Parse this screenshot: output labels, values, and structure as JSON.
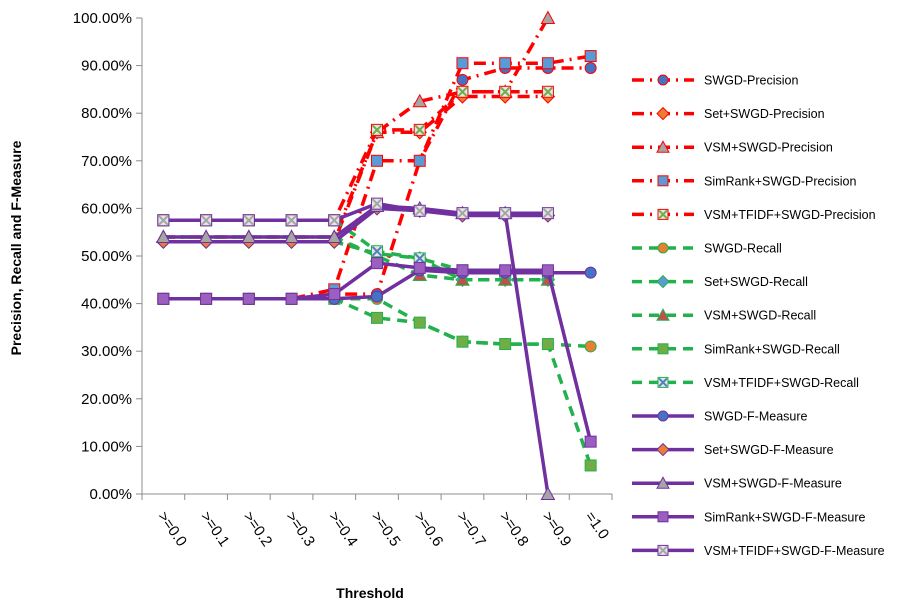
{
  "chart_data": {
    "type": "line",
    "title": "",
    "xlabel": "Threshold",
    "ylabel": "Precision, Recall and F-Measure",
    "categories": [
      ">=0.0",
      ">=0.1",
      ">=0.2",
      ">=0.3",
      ">=0.4",
      ">=0.5",
      ">=0.6",
      ">=0.7",
      ">=0.8",
      ">=0.9",
      "=1.0"
    ],
    "y_ticks": [
      "0.00%",
      "10.00%",
      "20.00%",
      "30.00%",
      "40.00%",
      "50.00%",
      "60.00%",
      "70.00%",
      "80.00%",
      "90.00%",
      "100.00%"
    ],
    "ylim": [
      0,
      100
    ],
    "grid": false,
    "legend_position": "right",
    "series": [
      {
        "name": "SWGD-Precision",
        "color": "#ff0000",
        "marker_color": "#4472c4",
        "marker": "circle",
        "style": "dashdot",
        "values": [
          41,
          41,
          41,
          41,
          42,
          42,
          70,
          87,
          89.5,
          89.5,
          89.5
        ]
      },
      {
        "name": "Set+SWGD-Precision",
        "color": "#ff0000",
        "marker_color": "#ed7d31",
        "marker": "diamond",
        "style": "dashdot",
        "values": [
          53,
          53,
          53,
          53,
          53,
          76,
          76,
          83.5,
          83.5,
          83.5,
          null
        ]
      },
      {
        "name": "VSM+SWGD-Precision",
        "color": "#ff0000",
        "marker_color": "#a5a5a5",
        "marker": "triangle",
        "style": "dashdot",
        "values": [
          54,
          54,
          54,
          54,
          54,
          76,
          82.5,
          84.5,
          84.5,
          100,
          null
        ]
      },
      {
        "name": "SimRank+SWGD-Precision",
        "color": "#ff0000",
        "marker_color": "#5b9bd5",
        "marker": "square",
        "style": "dashdot",
        "values": [
          41,
          41,
          41,
          41,
          43,
          70,
          70,
          90.5,
          90.5,
          90.5,
          92
        ]
      },
      {
        "name": "VSM+TFIDF+SWGD-Precision",
        "color": "#ff0000",
        "marker_color": "#70ad47",
        "marker": "x",
        "style": "dashdot",
        "values": [
          57.5,
          57.5,
          57.5,
          57.5,
          57.5,
          76.5,
          76.5,
          84.5,
          84.5,
          84.5,
          null
        ]
      },
      {
        "name": "SWGD-Recall",
        "color": "#22b14c",
        "marker_color": "#ed7d31",
        "marker": "circle",
        "style": "dashed",
        "values": [
          41,
          41,
          41,
          41,
          41,
          41,
          36,
          32,
          31.5,
          31.5,
          31
        ]
      },
      {
        "name": "Set+SWGD-Recall",
        "color": "#22b14c",
        "marker_color": "#5b9bd5",
        "marker": "diamond",
        "style": "dashed",
        "values": [
          53,
          53,
          53,
          53,
          53,
          50.5,
          49.5,
          45,
          45,
          45,
          null
        ]
      },
      {
        "name": "VSM+SWGD-Recall",
        "color": "#22b14c",
        "marker_color": "#c0504d",
        "marker": "triangle",
        "style": "dashed",
        "values": [
          54,
          54,
          54,
          54,
          54,
          50,
          46,
          45,
          45,
          45,
          null
        ]
      },
      {
        "name": "SimRank+SWGD-Recall",
        "color": "#22b14c",
        "marker_color": "#70ad47",
        "marker": "square",
        "style": "dashed",
        "values": [
          41,
          41,
          41,
          41,
          41,
          37,
          36,
          32,
          31.5,
          31.5,
          6
        ]
      },
      {
        "name": "VSM+TFIDF+SWGD-Recall",
        "color": "#22b14c",
        "marker_color": "#4f81bd",
        "marker": "x",
        "style": "dashed",
        "values": [
          57.5,
          57.5,
          57.5,
          57.5,
          57.5,
          51,
          49.5,
          47,
          46.5,
          46.5,
          null
        ]
      },
      {
        "name": "SWGD-F-Measure",
        "color": "#7030a0",
        "marker_color": "#4472c4",
        "marker": "circle",
        "style": "solid",
        "values": [
          41,
          41,
          41,
          41,
          41,
          41.5,
          47,
          46.5,
          46.5,
          46.5,
          46.5
        ]
      },
      {
        "name": "Set+SWGD-F-Measure",
        "color": "#7030a0",
        "marker_color": "#ed7d31",
        "marker": "diamond",
        "style": "solid",
        "values": [
          53,
          53,
          53,
          53,
          53,
          60,
          59.5,
          58.5,
          58.5,
          58.5,
          null
        ]
      },
      {
        "name": "VSM+SWGD-F-Measure",
        "color": "#7030a0",
        "marker_color": "#a5a5a5",
        "marker": "triangle",
        "style": "solid",
        "values": [
          54,
          54,
          54,
          54,
          54,
          60.5,
          60,
          59,
          59,
          0,
          null
        ]
      },
      {
        "name": "SimRank+SWGD-F-Measure",
        "color": "#7030a0",
        "marker_color": "#9b5fc0",
        "marker": "square",
        "style": "solid",
        "values": [
          41,
          41,
          41,
          41,
          42,
          48.5,
          47.5,
          47,
          47,
          47,
          11
        ]
      },
      {
        "name": "VSM+TFIDF+SWGD-F-Measure",
        "color": "#7030a0",
        "marker_color": "#a5a5a5",
        "marker": "x",
        "style": "solid",
        "values": [
          57.5,
          57.5,
          57.5,
          57.5,
          57.5,
          61,
          59.5,
          59,
          59,
          59,
          null
        ]
      }
    ]
  }
}
